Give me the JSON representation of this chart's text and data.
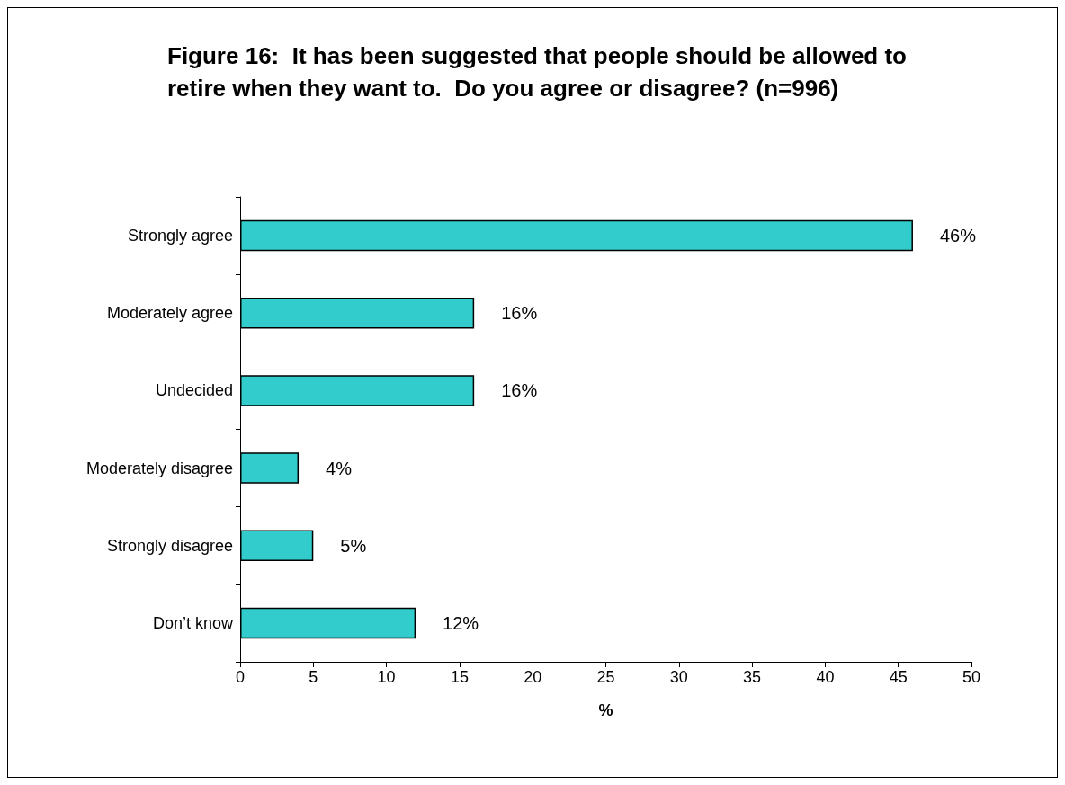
{
  "chart_data": {
    "type": "bar",
    "orientation": "horizontal",
    "title": "Figure 16:  It has been suggested that people should be allowed to retire when they want to.  Do you agree or disagree? (n=996)",
    "xlabel": "%",
    "categories": [
      "Strongly agree",
      "Moderately agree",
      "Undecided",
      "Moderately disagree",
      "Strongly disagree",
      "Don’t know"
    ],
    "values": [
      46,
      16,
      16,
      4,
      5,
      12
    ],
    "value_labels": [
      "46%",
      "16%",
      "16%",
      "4%",
      "5%",
      "12%"
    ],
    "color": "#33cccc",
    "xlim": [
      0,
      50
    ],
    "xticks": [
      0,
      5,
      10,
      15,
      20,
      25,
      30,
      35,
      40,
      45,
      50
    ],
    "grid": false
  }
}
